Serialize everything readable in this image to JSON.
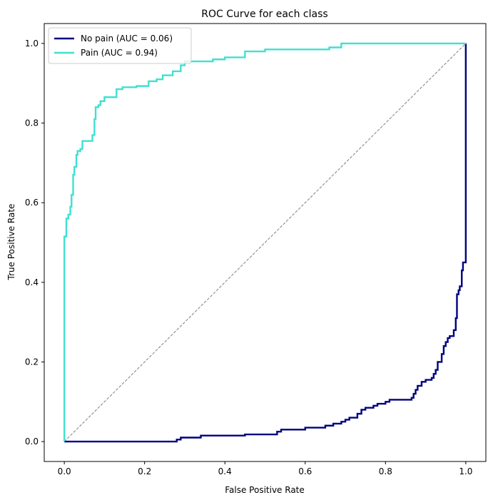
{
  "chart_data": {
    "type": "line",
    "title": "ROC Curve for each class",
    "xlabel": "False Positive Rate",
    "ylabel": "True Positive Rate",
    "xlim": [
      -0.05,
      1.05
    ],
    "ylim": [
      -0.05,
      1.05
    ],
    "xticks": [
      0.0,
      0.2,
      0.4,
      0.6,
      0.8,
      1.0
    ],
    "yticks": [
      0.0,
      0.2,
      0.4,
      0.6,
      0.8,
      1.0
    ],
    "xtick_labels": [
      "0.0",
      "0.2",
      "0.4",
      "0.6",
      "0.8",
      "1.0"
    ],
    "ytick_labels": [
      "0.0",
      "0.2",
      "0.4",
      "0.6",
      "0.8",
      "1.0"
    ],
    "grid": false,
    "legend": {
      "placement": "top-left",
      "entries": [
        "No pain (AUC = 0.06)",
        "Pain (AUC = 0.94)"
      ]
    },
    "series": [
      {
        "name": "No pain (AUC = 0.06)",
        "color": "#000080",
        "step": true,
        "points": [
          [
            0.0,
            0.0
          ],
          [
            0.27,
            0.0
          ],
          [
            0.28,
            0.005
          ],
          [
            0.29,
            0.01
          ],
          [
            0.34,
            0.015
          ],
          [
            0.45,
            0.018
          ],
          [
            0.53,
            0.025
          ],
          [
            0.54,
            0.03
          ],
          [
            0.6,
            0.035
          ],
          [
            0.65,
            0.04
          ],
          [
            0.67,
            0.045
          ],
          [
            0.69,
            0.05
          ],
          [
            0.7,
            0.055
          ],
          [
            0.71,
            0.06
          ],
          [
            0.73,
            0.07
          ],
          [
            0.74,
            0.08
          ],
          [
            0.75,
            0.085
          ],
          [
            0.77,
            0.09
          ],
          [
            0.78,
            0.095
          ],
          [
            0.8,
            0.1
          ],
          [
            0.81,
            0.105
          ],
          [
            0.865,
            0.11
          ],
          [
            0.87,
            0.12
          ],
          [
            0.875,
            0.13
          ],
          [
            0.88,
            0.14
          ],
          [
            0.89,
            0.15
          ],
          [
            0.9,
            0.155
          ],
          [
            0.915,
            0.16
          ],
          [
            0.92,
            0.17
          ],
          [
            0.925,
            0.18
          ],
          [
            0.93,
            0.2
          ],
          [
            0.94,
            0.22
          ],
          [
            0.945,
            0.24
          ],
          [
            0.95,
            0.25
          ],
          [
            0.955,
            0.26
          ],
          [
            0.96,
            0.265
          ],
          [
            0.97,
            0.28
          ],
          [
            0.975,
            0.31
          ],
          [
            0.978,
            0.37
          ],
          [
            0.982,
            0.38
          ],
          [
            0.985,
            0.39
          ],
          [
            0.99,
            0.43
          ],
          [
            0.993,
            0.45
          ],
          [
            1.0,
            0.45
          ],
          [
            1.0,
            1.0
          ]
        ]
      },
      {
        "name": "Pain (AUC = 0.94)",
        "color": "#40e0d0",
        "step": true,
        "points": [
          [
            0.0,
            0.0
          ],
          [
            0.0,
            0.515
          ],
          [
            0.005,
            0.56
          ],
          [
            0.01,
            0.57
          ],
          [
            0.015,
            0.59
          ],
          [
            0.018,
            0.62
          ],
          [
            0.022,
            0.67
          ],
          [
            0.025,
            0.69
          ],
          [
            0.03,
            0.72
          ],
          [
            0.033,
            0.73
          ],
          [
            0.04,
            0.735
          ],
          [
            0.045,
            0.755
          ],
          [
            0.07,
            0.77
          ],
          [
            0.075,
            0.81
          ],
          [
            0.078,
            0.84
          ],
          [
            0.085,
            0.845
          ],
          [
            0.09,
            0.855
          ],
          [
            0.1,
            0.865
          ],
          [
            0.13,
            0.885
          ],
          [
            0.145,
            0.89
          ],
          [
            0.18,
            0.893
          ],
          [
            0.21,
            0.905
          ],
          [
            0.23,
            0.91
          ],
          [
            0.245,
            0.92
          ],
          [
            0.27,
            0.93
          ],
          [
            0.29,
            0.945
          ],
          [
            0.3,
            0.955
          ],
          [
            0.37,
            0.96
          ],
          [
            0.4,
            0.965
          ],
          [
            0.45,
            0.98
          ],
          [
            0.5,
            0.985
          ],
          [
            0.66,
            0.99
          ],
          [
            0.69,
            1.0
          ],
          [
            1.0,
            1.0
          ]
        ]
      }
    ],
    "reference_line": {
      "color": "#808080",
      "dashed": true,
      "points": [
        [
          0.0,
          0.0
        ],
        [
          1.0,
          1.0
        ]
      ]
    }
  }
}
